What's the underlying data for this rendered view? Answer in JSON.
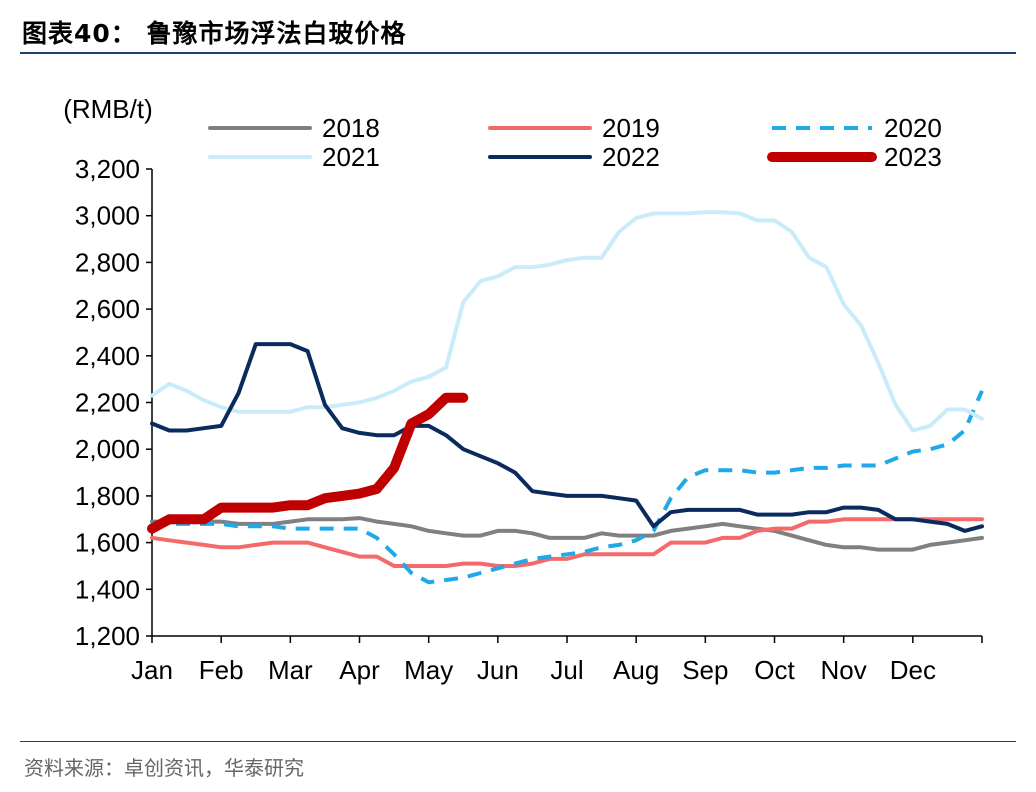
{
  "figure": {
    "title": "图表40： 鲁豫市场浮法白玻价格",
    "source": "资料来源：卓创资讯，华泰研究"
  },
  "chart_data": {
    "type": "line",
    "ylabel": "(RMB/t)",
    "ylim": [
      1200,
      3200
    ],
    "yticks": [
      1200,
      1400,
      1600,
      1800,
      2000,
      2200,
      2400,
      2600,
      2800,
      3000,
      3200
    ],
    "ytick_labels": [
      "1,200",
      "1,400",
      "1,600",
      "1,800",
      "2,000",
      "2,200",
      "2,400",
      "2,600",
      "2,800",
      "3,000",
      "3,200"
    ],
    "xlim": [
      1,
      13
    ],
    "months": [
      "Jan",
      "Feb",
      "Mar",
      "Apr",
      "May",
      "Jun",
      "Jul",
      "Aug",
      "Sep",
      "Oct",
      "Nov",
      "Dec"
    ],
    "legend_position": "top",
    "series": [
      {
        "name": "2018",
        "color": "#808080",
        "dash": "solid",
        "width": 4,
        "x": [
          1,
          1.25,
          1.5,
          1.75,
          2,
          2.25,
          2.5,
          2.75,
          3,
          3.25,
          3.5,
          3.75,
          4,
          4.25,
          4.5,
          4.75,
          5,
          5.25,
          5.5,
          5.75,
          6,
          6.25,
          6.5,
          6.75,
          7,
          7.25,
          7.5,
          7.75,
          8,
          8.25,
          8.5,
          8.75,
          9,
          9.25,
          9.5,
          9.75,
          10,
          10.25,
          10.5,
          10.75,
          11,
          11.25,
          11.5,
          11.75,
          12,
          12.25,
          12.5,
          12.75,
          13
        ],
        "y": [
          1690,
          1690,
          1690,
          1690,
          1690,
          1680,
          1680,
          1680,
          1690,
          1700,
          1700,
          1700,
          1705,
          1690,
          1680,
          1670,
          1650,
          1640,
          1630,
          1630,
          1650,
          1650,
          1640,
          1620,
          1620,
          1620,
          1640,
          1630,
          1630,
          1630,
          1650,
          1660,
          1670,
          1680,
          1670,
          1660,
          1650,
          1630,
          1610,
          1590,
          1580,
          1580,
          1570,
          1570,
          1570,
          1590,
          1600,
          1610,
          1620
        ]
      },
      {
        "name": "2019",
        "color": "#f46a6a",
        "dash": "solid",
        "width": 4,
        "x": [
          1,
          1.25,
          1.5,
          1.75,
          2,
          2.25,
          2.5,
          2.75,
          3,
          3.25,
          3.5,
          3.75,
          4,
          4.25,
          4.5,
          4.75,
          5,
          5.25,
          5.5,
          5.75,
          6,
          6.25,
          6.5,
          6.75,
          7,
          7.25,
          7.5,
          7.75,
          8,
          8.25,
          8.5,
          8.75,
          9,
          9.25,
          9.5,
          9.75,
          10,
          10.25,
          10.5,
          10.75,
          11,
          11.25,
          11.5,
          11.75,
          12,
          12.25,
          12.5,
          12.75,
          13
        ],
        "y": [
          1620,
          1610,
          1600,
          1590,
          1580,
          1580,
          1590,
          1600,
          1600,
          1600,
          1580,
          1560,
          1540,
          1540,
          1500,
          1500,
          1500,
          1500,
          1510,
          1510,
          1500,
          1500,
          1510,
          1530,
          1530,
          1550,
          1550,
          1550,
          1550,
          1550,
          1600,
          1600,
          1600,
          1620,
          1620,
          1650,
          1660,
          1660,
          1690,
          1690,
          1700,
          1700,
          1700,
          1700,
          1700,
          1700,
          1700,
          1700,
          1700
        ]
      },
      {
        "name": "2020",
        "color": "#1fa9e8",
        "dash": "dashed",
        "width": 4,
        "x": [
          1,
          1.25,
          1.5,
          1.75,
          2,
          2.25,
          2.5,
          2.75,
          3,
          3.25,
          3.5,
          3.75,
          4,
          4.25,
          4.5,
          4.75,
          5,
          5.25,
          5.5,
          5.75,
          6,
          6.25,
          6.5,
          6.75,
          7,
          7.25,
          7.5,
          7.75,
          8,
          8.25,
          8.5,
          8.75,
          9,
          9.25,
          9.5,
          9.75,
          10,
          10.25,
          10.5,
          10.75,
          11,
          11.25,
          11.5,
          11.75,
          12,
          12.25,
          12.5,
          12.75,
          13
        ],
        "y": [
          1680,
          1680,
          1680,
          1680,
          1680,
          1670,
          1670,
          1670,
          1660,
          1660,
          1660,
          1660,
          1660,
          1620,
          1550,
          1470,
          1430,
          1440,
          1450,
          1470,
          1490,
          1510,
          1530,
          1540,
          1550,
          1560,
          1580,
          1590,
          1610,
          1650,
          1790,
          1880,
          1910,
          1910,
          1910,
          1900,
          1900,
          1910,
          1920,
          1920,
          1930,
          1930,
          1930,
          1960,
          1990,
          2000,
          2020,
          2080,
          2250
        ]
      },
      {
        "name": "2021",
        "color": "#c9ecf8",
        "dash": "solid",
        "width": 4,
        "x": [
          1,
          1.25,
          1.5,
          1.75,
          2,
          2.25,
          2.5,
          2.75,
          3,
          3.25,
          3.5,
          3.75,
          4,
          4.25,
          4.5,
          4.75,
          5,
          5.25,
          5.5,
          5.75,
          6,
          6.25,
          6.5,
          6.75,
          7,
          7.25,
          7.5,
          7.75,
          8,
          8.25,
          8.5,
          8.75,
          9,
          9.25,
          9.5,
          9.75,
          10,
          10.25,
          10.5,
          10.75,
          11,
          11.25,
          11.5,
          11.75,
          12,
          12.25,
          12.5,
          12.75,
          13
        ],
        "y": [
          2230,
          2280,
          2250,
          2210,
          2180,
          2160,
          2160,
          2160,
          2160,
          2180,
          2180,
          2190,
          2200,
          2220,
          2250,
          2290,
          2310,
          2350,
          2630,
          2720,
          2740,
          2780,
          2780,
          2790,
          2810,
          2820,
          2820,
          2930,
          2990,
          3010,
          3010,
          3010,
          3015,
          3015,
          3010,
          2980,
          2980,
          2930,
          2820,
          2780,
          2620,
          2530,
          2370,
          2190,
          2080,
          2100,
          2170,
          2170,
          2130
        ]
      },
      {
        "name": "2022",
        "color": "#0b2a5e",
        "dash": "solid",
        "width": 4,
        "x": [
          1,
          1.25,
          1.5,
          1.75,
          2,
          2.25,
          2.5,
          2.75,
          3,
          3.25,
          3.5,
          3.75,
          4,
          4.25,
          4.5,
          4.75,
          5,
          5.25,
          5.5,
          5.75,
          6,
          6.25,
          6.5,
          6.75,
          7,
          7.25,
          7.5,
          7.75,
          8,
          8.25,
          8.5,
          8.75,
          9,
          9.25,
          9.5,
          9.75,
          10,
          10.25,
          10.5,
          10.75,
          11,
          11.25,
          11.5,
          11.75,
          12,
          12.25,
          12.5,
          12.75,
          13
        ],
        "y": [
          2110,
          2080,
          2080,
          2090,
          2100,
          2240,
          2450,
          2450,
          2450,
          2420,
          2190,
          2090,
          2070,
          2060,
          2060,
          2100,
          2100,
          2060,
          2000,
          1970,
          1940,
          1900,
          1820,
          1810,
          1800,
          1800,
          1800,
          1790,
          1780,
          1670,
          1730,
          1740,
          1740,
          1740,
          1740,
          1720,
          1720,
          1720,
          1730,
          1730,
          1750,
          1750,
          1740,
          1700,
          1700,
          1690,
          1680,
          1650,
          1670
        ]
      },
      {
        "name": "2023",
        "color": "#c00000",
        "dash": "solid",
        "width": 10,
        "x": [
          1,
          1.25,
          1.5,
          1.75,
          2,
          2.25,
          2.5,
          2.75,
          3,
          3.25,
          3.5,
          3.75,
          4,
          4.25,
          4.5,
          4.75,
          5,
          5.25,
          5.5
        ],
        "y": [
          1660,
          1700,
          1700,
          1700,
          1750,
          1750,
          1750,
          1750,
          1760,
          1760,
          1790,
          1800,
          1810,
          1830,
          1920,
          2110,
          2150,
          2220,
          2220
        ]
      }
    ]
  }
}
